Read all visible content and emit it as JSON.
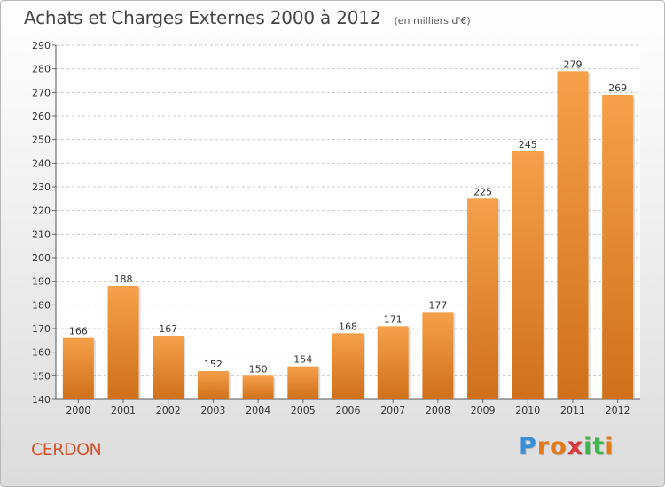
{
  "chart_data": {
    "type": "bar",
    "title": "Achats et Charges Externes 2000 à 2012",
    "subtitle": "(en milliers d'€)",
    "xlabel": "",
    "ylabel": "",
    "categories": [
      "2000",
      "2001",
      "2002",
      "2003",
      "2004",
      "2005",
      "2006",
      "2007",
      "2008",
      "2009",
      "2010",
      "2011",
      "2012"
    ],
    "values": [
      166,
      188,
      167,
      152,
      150,
      154,
      168,
      171,
      177,
      225,
      245,
      279,
      269
    ],
    "ylim": [
      140,
      290
    ],
    "yticks": [
      140,
      150,
      160,
      170,
      180,
      190,
      200,
      210,
      220,
      230,
      240,
      250,
      260,
      270,
      280,
      290
    ],
    "grid": true,
    "bar_color_top": "#f5a04a",
    "bar_color_bottom": "#d0701a",
    "grid_color": "#c8c8c8"
  },
  "footer": {
    "commune": "CERDON",
    "logo_letters": [
      "P",
      "r",
      "o",
      "x",
      "i",
      "t",
      "i"
    ],
    "logo_colors": [
      "#3a8fd6",
      "#e07a1a",
      "#e07a1a",
      "#d63a3a",
      "#3ab54a",
      "#3ab54a",
      "#e07a1a"
    ]
  }
}
